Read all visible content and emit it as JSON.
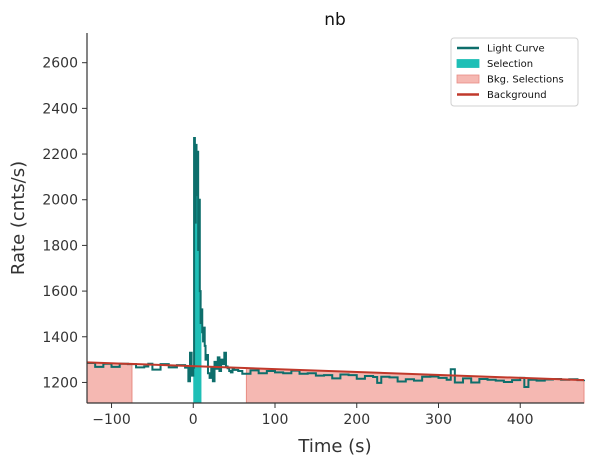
{
  "chart_data": {
    "type": "line",
    "title": "nb",
    "xlabel": "Time (s)",
    "ylabel": "Rate (cnts/s)",
    "xlim": [
      -130,
      478
    ],
    "ylim": [
      1110,
      2730
    ],
    "x_ticks": [
      -100,
      0,
      100,
      200,
      300,
      400
    ],
    "x_tick_labels": [
      "−100",
      "0",
      "100",
      "200",
      "300",
      "400"
    ],
    "y_ticks": [
      1200,
      1400,
      1600,
      1800,
      2000,
      2200,
      2400,
      2600
    ],
    "y_tick_labels": [
      "1200",
      "1400",
      "1600",
      "1800",
      "2000",
      "2200",
      "2400",
      "2600"
    ],
    "grid": false,
    "legend_position": "top-right",
    "colors": {
      "light_curve": "#0d6e6b",
      "selection": "#1ebfb6",
      "bkg_selection_fill": "#f5b8b2",
      "bkg_selection_edge": "#e88d84",
      "background": "#c0392b",
      "axis": "#333333"
    },
    "legend": [
      {
        "label": "Light Curve",
        "kind": "line",
        "color_key": "light_curve"
      },
      {
        "label": "Selection",
        "kind": "patch",
        "color_key": "selection"
      },
      {
        "label": "Bkg. Selections",
        "kind": "patch",
        "color_key": "bkg_selection_fill"
      },
      {
        "label": "Background",
        "kind": "line",
        "color_key": "background"
      }
    ],
    "selection": [
      0,
      10
    ],
    "bkg_selections": [
      [
        -130,
        -75
      ],
      [
        65,
        478
      ]
    ],
    "background": {
      "x": [
        -130,
        478
      ],
      "y": [
        1288,
        1210
      ]
    },
    "light_curve": {
      "x": [
        -130,
        -120,
        -110,
        -100,
        -90,
        -80,
        -70,
        -60,
        -55,
        -50,
        -40,
        -30,
        -20,
        -10,
        -6,
        -4,
        -2,
        0,
        1,
        2,
        3,
        4,
        5,
        6,
        7,
        8,
        9,
        10,
        11,
        12,
        13,
        14,
        15,
        16,
        18,
        20,
        22,
        24,
        26,
        28,
        30,
        32,
        34,
        36,
        38,
        40,
        42,
        44,
        46,
        48,
        50,
        55,
        60,
        70,
        80,
        90,
        100,
        110,
        120,
        130,
        140,
        150,
        160,
        170,
        180,
        190,
        200,
        210,
        220,
        225,
        230,
        240,
        250,
        260,
        270,
        280,
        290,
        300,
        310,
        315,
        320,
        330,
        340,
        350,
        360,
        370,
        380,
        390,
        400,
        405,
        410,
        420,
        430,
        440,
        450,
        460,
        470,
        478
      ],
      "y": [
        1285,
        1268,
        1282,
        1268,
        1282,
        1280,
        1266,
        1270,
        1282,
        1256,
        1280,
        1266,
        1276,
        1265,
        1205,
        1330,
        1230,
        1265,
        2270,
        1900,
        2240,
        2020,
        2210,
        1780,
        2000,
        1600,
        1460,
        1520,
        1420,
        1380,
        1440,
        1360,
        1300,
        1320,
        1240,
        1220,
        1265,
        1205,
        1290,
        1260,
        1310,
        1250,
        1300,
        1280,
        1330,
        1270,
        1262,
        1250,
        1244,
        1258,
        1255,
        1250,
        1238,
        1253,
        1240,
        1250,
        1244,
        1240,
        1252,
        1238,
        1240,
        1230,
        1232,
        1218,
        1235,
        1232,
        1216,
        1228,
        1224,
        1198,
        1225,
        1222,
        1204,
        1214,
        1208,
        1225,
        1226,
        1220,
        1212,
        1258,
        1200,
        1218,
        1200,
        1215,
        1212,
        1208,
        1202,
        1210,
        1220,
        1180,
        1212,
        1208,
        1213,
        1215,
        1212,
        1214,
        1210,
        1212
      ]
    }
  }
}
